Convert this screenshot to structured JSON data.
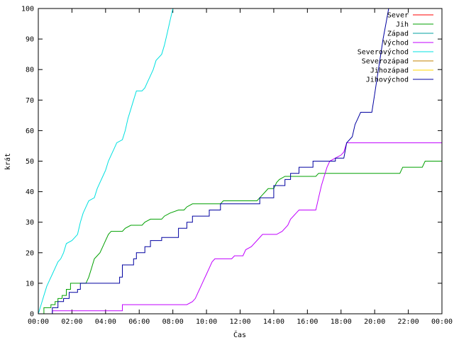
{
  "chart_data": {
    "type": "line",
    "title": "",
    "xlabel": "Čas",
    "ylabel": "krát",
    "xlim": [
      "00:00",
      "24:00"
    ],
    "ylim": [
      0,
      100
    ],
    "grid": false,
    "legend_position": "top-right",
    "x_ticks": [
      "00:00",
      "02:00",
      "04:00",
      "06:00",
      "08:00",
      "10:00",
      "12:00",
      "14:00",
      "16:00",
      "18:00",
      "20:00",
      "22:00",
      "00:00"
    ],
    "y_ticks": [
      "0",
      "10",
      "20",
      "30",
      "40",
      "50",
      "60",
      "70",
      "80",
      "90",
      "100"
    ],
    "series": [
      {
        "name": "Sever",
        "color": "#ff0000",
        "points": []
      },
      {
        "name": "Jih",
        "color": "#00a000",
        "points": [
          [
            "00:00",
            0
          ],
          [
            "00:20",
            0
          ],
          [
            "00:20",
            2
          ],
          [
            "00:45",
            2
          ],
          [
            "00:45",
            3
          ],
          [
            "01:00",
            3
          ],
          [
            "01:00",
            4
          ],
          [
            "01:10",
            4
          ],
          [
            "01:10",
            5
          ],
          [
            "01:25",
            5
          ],
          [
            "01:25",
            6
          ],
          [
            "01:40",
            6
          ],
          [
            "01:40",
            8
          ],
          [
            "01:55",
            8
          ],
          [
            "01:55",
            10
          ],
          [
            "02:50",
            10
          ],
          [
            "03:00",
            12
          ],
          [
            "03:10",
            15
          ],
          [
            "03:20",
            18
          ],
          [
            "03:30",
            19
          ],
          [
            "03:40",
            20
          ],
          [
            "03:50",
            22
          ],
          [
            "04:00",
            24
          ],
          [
            "04:10",
            26
          ],
          [
            "04:20",
            27
          ],
          [
            "05:00",
            27
          ],
          [
            "05:10",
            28
          ],
          [
            "05:30",
            29
          ],
          [
            "06:10",
            29
          ],
          [
            "06:20",
            30
          ],
          [
            "06:40",
            31
          ],
          [
            "07:20",
            31
          ],
          [
            "07:30",
            32
          ],
          [
            "07:50",
            33
          ],
          [
            "08:20",
            34
          ],
          [
            "08:40",
            34
          ],
          [
            "08:50",
            35
          ],
          [
            "09:10",
            36
          ],
          [
            "10:50",
            36
          ],
          [
            "11:00",
            37
          ],
          [
            "13:00",
            37
          ],
          [
            "13:10",
            38
          ],
          [
            "13:20",
            39
          ],
          [
            "13:30",
            40
          ],
          [
            "13:40",
            41
          ],
          [
            "14:00",
            41
          ],
          [
            "14:10",
            43
          ],
          [
            "14:20",
            44
          ],
          [
            "14:40",
            45
          ],
          [
            "16:30",
            45
          ],
          [
            "16:40",
            46
          ],
          [
            "21:30",
            46
          ],
          [
            "21:40",
            48
          ],
          [
            "22:50",
            48
          ],
          [
            "23:00",
            50
          ],
          [
            "24:00",
            50
          ]
        ]
      },
      {
        "name": "Západ",
        "color": "#00a0a0",
        "points": []
      },
      {
        "name": "Východ",
        "color": "#c000ff",
        "points": [
          [
            "00:50",
            0
          ],
          [
            "00:50",
            1
          ],
          [
            "05:00",
            1
          ],
          [
            "05:00",
            3
          ],
          [
            "08:50",
            3
          ],
          [
            "09:10",
            4
          ],
          [
            "09:20",
            5
          ],
          [
            "09:30",
            7
          ],
          [
            "09:40",
            9
          ],
          [
            "09:50",
            11
          ],
          [
            "10:00",
            13
          ],
          [
            "10:10",
            15
          ],
          [
            "10:20",
            17
          ],
          [
            "10:30",
            18
          ],
          [
            "11:30",
            18
          ],
          [
            "11:40",
            19
          ],
          [
            "12:10",
            19
          ],
          [
            "12:20",
            21
          ],
          [
            "12:40",
            22
          ],
          [
            "13:00",
            24
          ],
          [
            "13:20",
            26
          ],
          [
            "14:10",
            26
          ],
          [
            "14:30",
            27
          ],
          [
            "14:50",
            29
          ],
          [
            "15:00",
            31
          ],
          [
            "15:10",
            32
          ],
          [
            "15:20",
            33
          ],
          [
            "15:30",
            34
          ],
          [
            "16:30",
            34
          ],
          [
            "16:40",
            38
          ],
          [
            "16:50",
            42
          ],
          [
            "17:00",
            45
          ],
          [
            "17:10",
            48
          ],
          [
            "17:20",
            50
          ],
          [
            "17:40",
            51
          ],
          [
            "18:00",
            52
          ],
          [
            "18:10",
            53
          ],
          [
            "18:20",
            56
          ],
          [
            "24:00",
            56
          ]
        ]
      },
      {
        "name": "Severovýchod",
        "color": "#00e0e0",
        "points": [
          [
            "00:00",
            0
          ],
          [
            "00:10",
            3
          ],
          [
            "00:20",
            6
          ],
          [
            "00:30",
            9
          ],
          [
            "00:40",
            11
          ],
          [
            "00:50",
            13
          ],
          [
            "01:00",
            15
          ],
          [
            "01:10",
            17
          ],
          [
            "01:20",
            18
          ],
          [
            "01:30",
            20
          ],
          [
            "01:40",
            23
          ],
          [
            "02:00",
            24
          ],
          [
            "02:10",
            25
          ],
          [
            "02:20",
            26
          ],
          [
            "02:30",
            30
          ],
          [
            "02:40",
            33
          ],
          [
            "02:50",
            35
          ],
          [
            "03:00",
            37
          ],
          [
            "03:20",
            38
          ],
          [
            "03:30",
            41
          ],
          [
            "03:40",
            43
          ],
          [
            "03:50",
            45
          ],
          [
            "04:00",
            47
          ],
          [
            "04:10",
            50
          ],
          [
            "04:20",
            52
          ],
          [
            "04:30",
            54
          ],
          [
            "04:40",
            56
          ],
          [
            "05:00",
            57
          ],
          [
            "05:10",
            60
          ],
          [
            "05:20",
            64
          ],
          [
            "05:30",
            67
          ],
          [
            "05:40",
            70
          ],
          [
            "05:50",
            73
          ],
          [
            "06:10",
            73
          ],
          [
            "06:20",
            74
          ],
          [
            "06:30",
            76
          ],
          [
            "06:40",
            78
          ],
          [
            "06:50",
            80
          ],
          [
            "07:00",
            83
          ],
          [
            "07:20",
            85
          ],
          [
            "07:30",
            88
          ],
          [
            "07:40",
            92
          ],
          [
            "07:50",
            96
          ],
          [
            "08:00",
            100
          ]
        ]
      },
      {
        "name": "Severozápad",
        "color": "#c08000",
        "points": []
      },
      {
        "name": "Jihozápad",
        "color": "#ffd700",
        "points": []
      },
      {
        "name": "Jihovýchod",
        "color": "#0000a0",
        "points": [
          [
            "00:00",
            0
          ],
          [
            "00:50",
            0
          ],
          [
            "00:50",
            2
          ],
          [
            "01:10",
            2
          ],
          [
            "01:10",
            4
          ],
          [
            "01:30",
            4
          ],
          [
            "01:30",
            5
          ],
          [
            "01:50",
            5
          ],
          [
            "01:50",
            7
          ],
          [
            "02:20",
            7
          ],
          [
            "02:20",
            8
          ],
          [
            "02:30",
            8
          ],
          [
            "02:30",
            10
          ],
          [
            "04:50",
            10
          ],
          [
            "04:50",
            12
          ],
          [
            "05:00",
            12
          ],
          [
            "05:00",
            16
          ],
          [
            "05:40",
            16
          ],
          [
            "05:40",
            18
          ],
          [
            "05:50",
            18
          ],
          [
            "05:50",
            20
          ],
          [
            "06:20",
            20
          ],
          [
            "06:20",
            22
          ],
          [
            "06:40",
            22
          ],
          [
            "06:40",
            24
          ],
          [
            "07:20",
            24
          ],
          [
            "07:20",
            25
          ],
          [
            "08:20",
            25
          ],
          [
            "08:20",
            28
          ],
          [
            "08:50",
            28
          ],
          [
            "08:50",
            30
          ],
          [
            "09:10",
            30
          ],
          [
            "09:10",
            32
          ],
          [
            "10:10",
            32
          ],
          [
            "10:10",
            34
          ],
          [
            "10:50",
            34
          ],
          [
            "10:50",
            36
          ],
          [
            "13:10",
            36
          ],
          [
            "13:10",
            38
          ],
          [
            "14:00",
            38
          ],
          [
            "14:00",
            42
          ],
          [
            "14:40",
            42
          ],
          [
            "14:40",
            44
          ],
          [
            "15:00",
            44
          ],
          [
            "15:00",
            46
          ],
          [
            "15:30",
            46
          ],
          [
            "15:30",
            48
          ],
          [
            "16:20",
            48
          ],
          [
            "16:20",
            50
          ],
          [
            "17:40",
            50
          ],
          [
            "17:40",
            51
          ],
          [
            "18:10",
            51
          ],
          [
            "18:20",
            56
          ],
          [
            "18:40",
            58
          ],
          [
            "18:50",
            62
          ],
          [
            "19:00",
            64
          ],
          [
            "19:10",
            66
          ],
          [
            "19:50",
            66
          ],
          [
            "20:00",
            72
          ],
          [
            "20:10",
            78
          ],
          [
            "20:20",
            84
          ],
          [
            "20:30",
            90
          ],
          [
            "20:40",
            95
          ],
          [
            "20:50",
            100
          ]
        ]
      }
    ]
  }
}
